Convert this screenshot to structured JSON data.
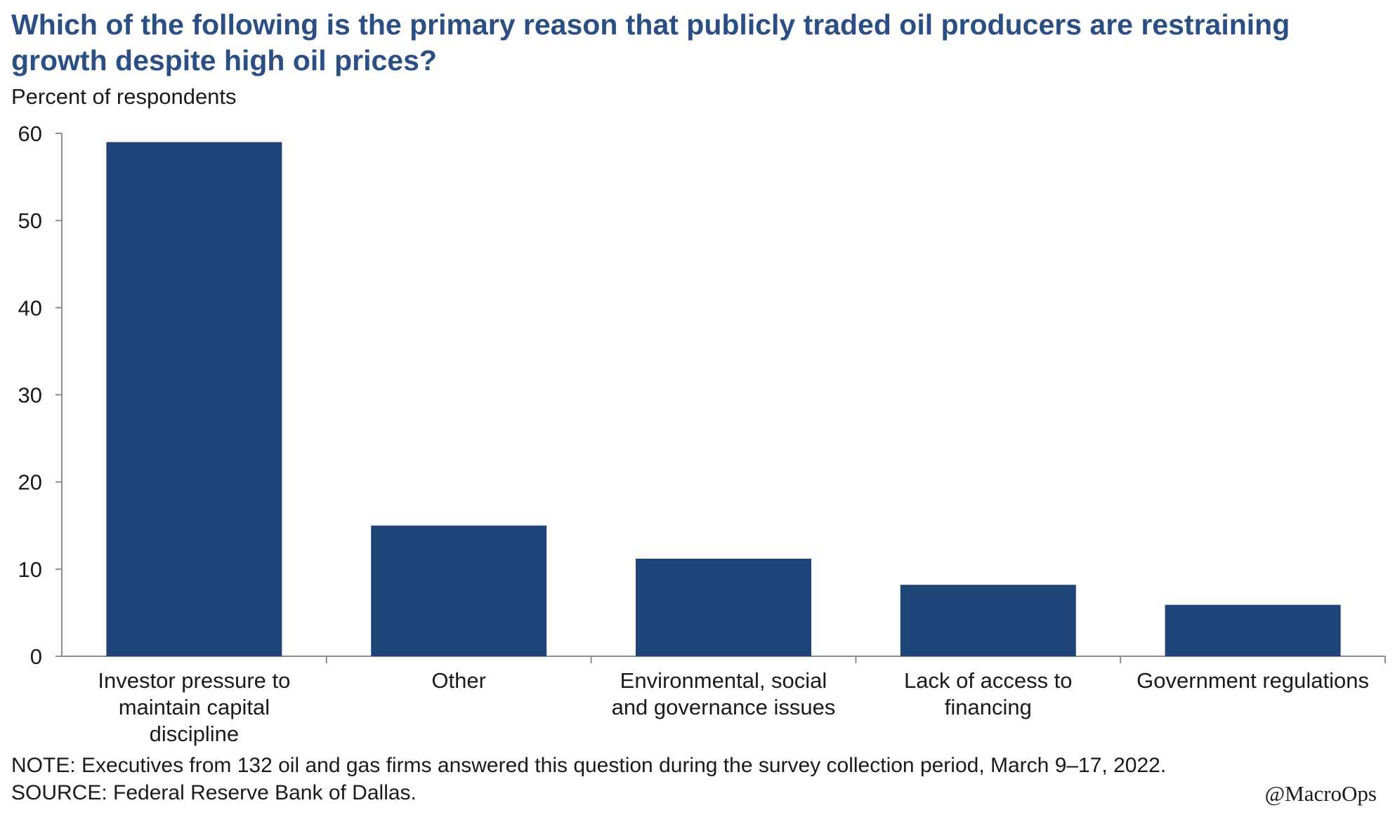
{
  "chart_data": {
    "type": "bar",
    "title": "Which of the following is the primary reason that publicly traded oil producers are restraining growth despite high oil prices?",
    "ylabel": "Percent of respondents",
    "xlabel": "",
    "ylim": [
      0,
      60
    ],
    "yticks": [
      0,
      10,
      20,
      30,
      40,
      50,
      60
    ],
    "categories": [
      [
        "Investor pressure to",
        "maintain capital",
        "discipline"
      ],
      [
        "Other"
      ],
      [
        "Environmental, social",
        "and governance issues"
      ],
      [
        "Lack of access to",
        "financing"
      ],
      [
        "Government regulations"
      ]
    ],
    "values": [
      59,
      15,
      11.2,
      8.2,
      5.9
    ],
    "bar_color": "#1f4477",
    "grid": false
  },
  "note": "NOTE:  Executives  from 132 oil and gas firms answered this question during the survey collection period, March 9–17, 2022.",
  "source": "SOURCE:  Federal Reserve Bank of Dallas.",
  "watermark": "@MacroOps"
}
